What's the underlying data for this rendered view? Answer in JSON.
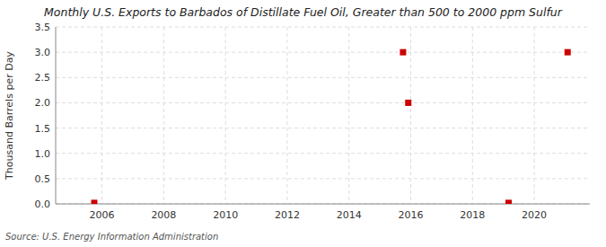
{
  "chart_data": {
    "type": "scatter",
    "title": "Monthly U.S. Exports to Barbados of Distillate Fuel Oil, Greater than 500 to 2000 ppm Sulfur",
    "ylabel": "Thousand Barrels per Day",
    "annotations": [
      "Source: U.S. Energy Information Administration"
    ],
    "x": [
      2005.75,
      2015.75,
      2015.92,
      2019.17,
      2021.08
    ],
    "values": [
      0.02,
      3.0,
      2.0,
      0.02,
      3.0
    ],
    "color": "#cc0000",
    "marker": "square",
    "xlim": [
      2004.5,
      2021.8
    ],
    "ylim": [
      0.0,
      3.5
    ],
    "xticks": [
      2006,
      2008,
      2010,
      2012,
      2014,
      2016,
      2018,
      2020
    ],
    "yticks": [
      {
        "value": 0.0,
        "label": "0.0"
      },
      0.5,
      {
        "value": 1.0,
        "label": "1.0"
      },
      1.5,
      {
        "value": 2.0,
        "label": "2.0"
      },
      2.5,
      {
        "value": 3.0,
        "label": "3.0"
      },
      3.5
    ],
    "grid": true
  }
}
